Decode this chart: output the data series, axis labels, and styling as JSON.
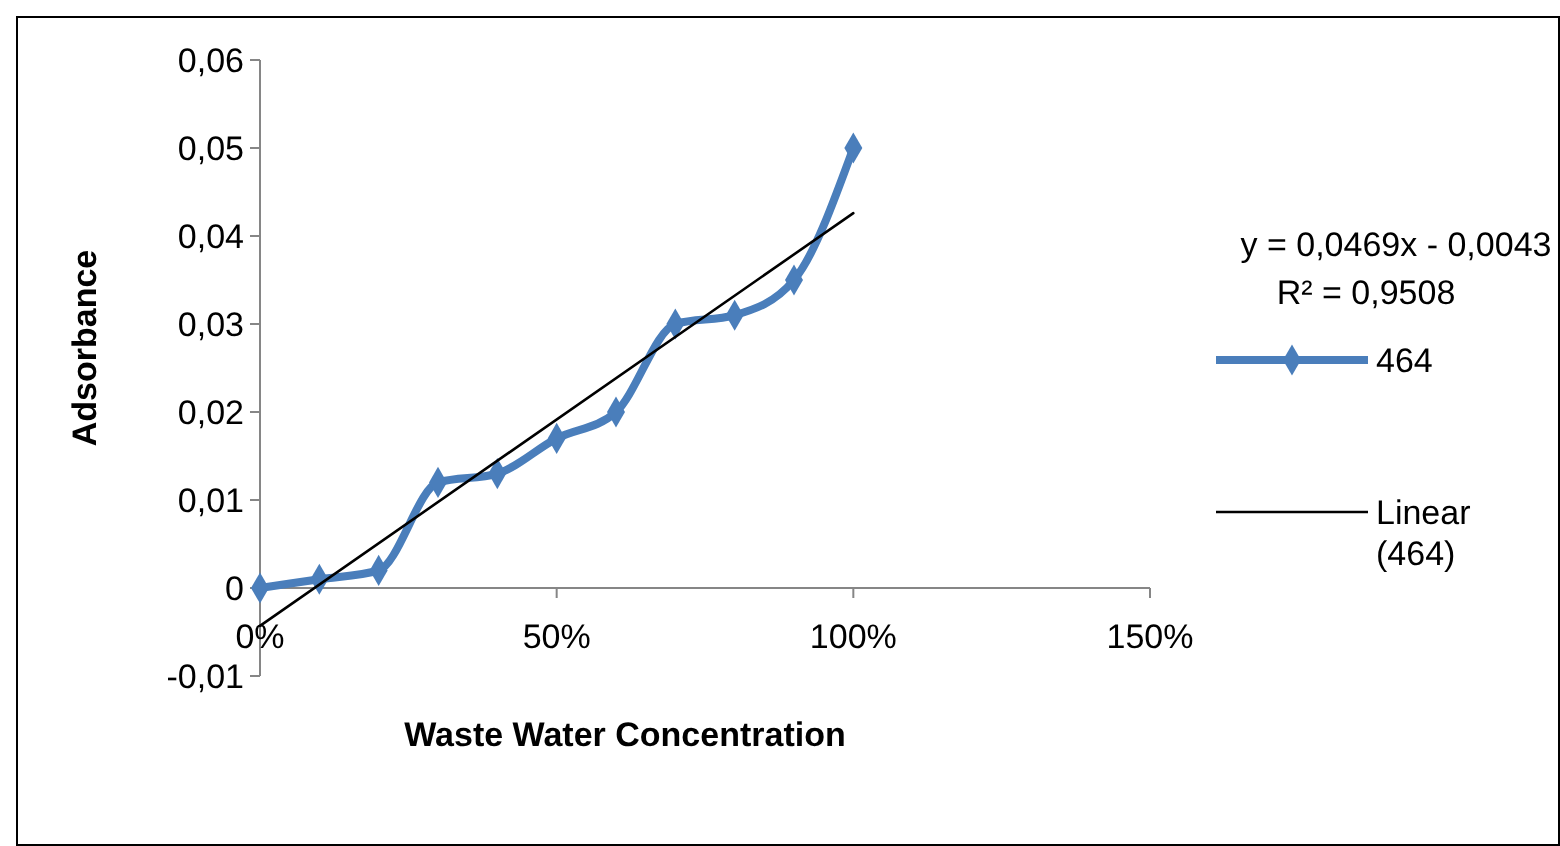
{
  "chart_data": {
    "type": "line",
    "xlabel": "Waste Water Concentration",
    "ylabel": "Adsorbance",
    "x": [
      0,
      0.1,
      0.2,
      0.3,
      0.4,
      0.5,
      0.6,
      0.7,
      0.8,
      0.9,
      1.0
    ],
    "series": [
      {
        "name": "464",
        "color": "#4a7ebb",
        "values": [
          0,
          0.001,
          0.002,
          0.012,
          0.013,
          0.017,
          0.02,
          0.03,
          0.031,
          0.035,
          0.05
        ]
      },
      {
        "name": "Linear (464)",
        "type": "line",
        "color": "#000000",
        "marker": "none",
        "x": [
          0,
          1
        ],
        "values": [
          -0.0043,
          0.0426
        ]
      }
    ],
    "xlim": [
      0,
      1.5
    ],
    "xticks": [
      {
        "value": 0,
        "label": "0%"
      },
      {
        "value": 0.5,
        "label": "50%"
      },
      {
        "value": 1,
        "label": "100%"
      },
      {
        "value": 1.5,
        "label": "150%"
      }
    ],
    "ylim": [
      -0.01,
      0.06
    ],
    "yticks": [
      {
        "value": -0.01,
        "label": "-0,01"
      },
      0,
      {
        "value": 0.01,
        "label": "0,01"
      },
      {
        "value": 0.02,
        "label": "0,02"
      },
      {
        "value": 0.03,
        "label": "0,03"
      },
      {
        "value": 0.04,
        "label": "0,04"
      },
      {
        "value": 0.05,
        "label": "0,05"
      },
      {
        "value": 0.06,
        "label": "0,06"
      }
    ],
    "annotations": [
      "y = 0,0469x - 0,0043",
      "R² = 0,9508"
    ],
    "legend": "right",
    "grid": false,
    "marker": "diamond",
    "line_style": "solid"
  }
}
